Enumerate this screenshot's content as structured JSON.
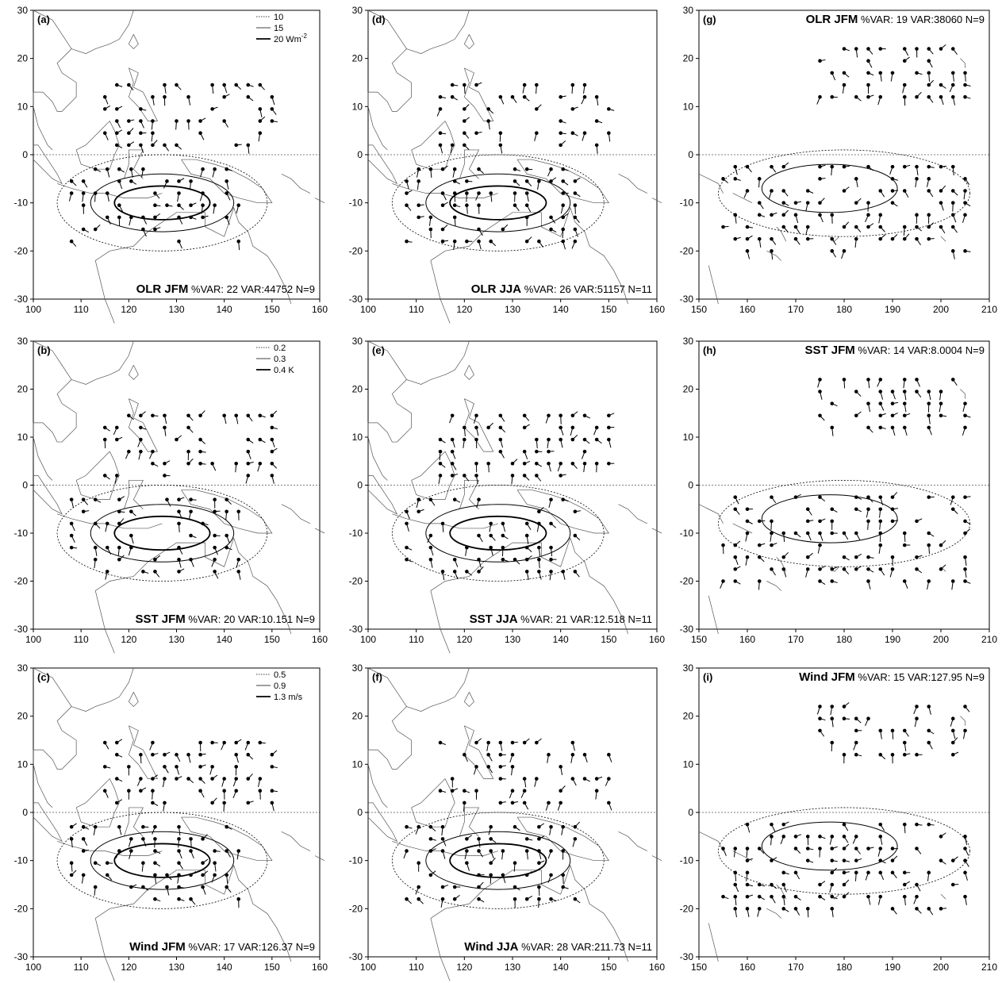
{
  "panels": [
    {
      "id": "a",
      "label": "(a)",
      "title": "OLR JFM",
      "stats": "%VAR: 22 VAR:44752   N=9",
      "title_pos": "bottom",
      "region": "west",
      "legend": {
        "items": [
          "10",
          "15",
          "20 Wm"
        ],
        "superscript": "-2"
      }
    },
    {
      "id": "b",
      "label": "(b)",
      "title": "SST JFM",
      "stats": "%VAR: 20 VAR:10.151   N=9",
      "title_pos": "bottom",
      "region": "west",
      "legend": {
        "items": [
          "0.2",
          "0.3",
          "0.4 K"
        ],
        "superscript": ""
      }
    },
    {
      "id": "c",
      "label": "(c)",
      "title": "Wind JFM",
      "stats": "%VAR: 17 VAR:126.37   N=9",
      "title_pos": "bottom",
      "region": "west",
      "legend": {
        "items": [
          "0.5",
          "0.9",
          "1.3 m/s"
        ],
        "superscript": ""
      }
    },
    {
      "id": "d",
      "label": "(d)",
      "title": "OLR JJA",
      "stats": "%VAR: 26 VAR:51157   N=11",
      "title_pos": "bottom",
      "region": "west"
    },
    {
      "id": "e",
      "label": "(e)",
      "title": "SST JJA",
      "stats": "%VAR: 21 VAR:12.518   N=11",
      "title_pos": "bottom",
      "region": "west"
    },
    {
      "id": "f",
      "label": "(f)",
      "title": "Wind JJA",
      "stats": "%VAR: 28 VAR:211.73   N=11",
      "title_pos": "bottom",
      "region": "west"
    },
    {
      "id": "g",
      "label": "(g)",
      "title": "OLR JFM",
      "stats": "%VAR: 19 VAR:38060   N=9",
      "title_pos": "top",
      "region": "east"
    },
    {
      "id": "h",
      "label": "(h)",
      "title": "SST JFM",
      "stats": "%VAR: 14 VAR:8.0004   N=9",
      "title_pos": "top",
      "region": "east"
    },
    {
      "id": "i",
      "label": "(i)",
      "title": "Wind JFM",
      "stats": "%VAR: 15 VAR:127.95   N=9",
      "title_pos": "top",
      "region": "east"
    }
  ],
  "axes": {
    "lat_ticks": [
      "30",
      "20",
      "10",
      "0",
      "-10",
      "-20",
      "-30"
    ],
    "lon_ticks_west": [
      "100",
      "110",
      "120",
      "130",
      "140",
      "150",
      "160"
    ],
    "lon_ticks_east": [
      "150",
      "160",
      "170",
      "180",
      "190",
      "200",
      "210"
    ]
  }
}
